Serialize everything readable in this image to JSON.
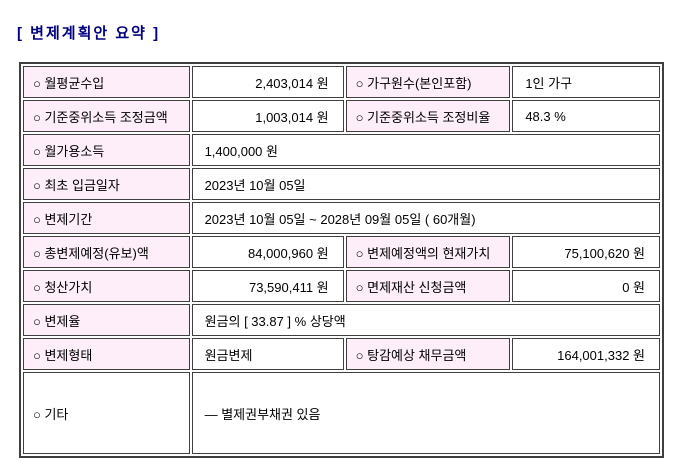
{
  "page": {
    "title": "[ 변제계획안 요약 ]"
  },
  "colors": {
    "title": "#000080",
    "label_bg": "#fdeef9",
    "border": "#3f3f3f",
    "text": "#000000",
    "background": "#ffffff"
  },
  "table": {
    "rows": [
      {
        "cells": [
          {
            "text": "○ 월평균수입"
          },
          {
            "text": "2,403,014 원"
          },
          {
            "text": "○ 가구원수(본인포함)"
          },
          {
            "text": "1인 가구"
          }
        ]
      },
      {
        "cells": [
          {
            "text": "○ 기준중위소득 조정금액"
          },
          {
            "text": "1,003,014 원"
          },
          {
            "text": "○ 기준중위소득 조정비율"
          },
          {
            "text": "48.3 %"
          }
        ]
      },
      {
        "cells": [
          {
            "text": "○ 월가용소득"
          },
          {
            "text": "1,400,000 원"
          }
        ]
      },
      {
        "cells": [
          {
            "text": "○ 최초 입금일자"
          },
          {
            "text": "2023년 10월 05일"
          }
        ]
      },
      {
        "cells": [
          {
            "text": "○ 변제기간"
          },
          {
            "text": "2023년 10월 05일 ~ 2028년 09월 05일 ( 60개월)"
          }
        ]
      },
      {
        "cells": [
          {
            "text": "○ 총변제예정(유보)액"
          },
          {
            "text": "84,000,960 원"
          },
          {
            "text": "○ 변제예정액의 현재가치"
          },
          {
            "text": "75,100,620 원"
          }
        ]
      },
      {
        "cells": [
          {
            "text": "○ 청산가치"
          },
          {
            "text": "73,590,411 원"
          },
          {
            "text": "○ 면제재산 신청금액"
          },
          {
            "text": "0 원"
          }
        ]
      },
      {
        "cells": [
          {
            "text": "○ 변제율"
          },
          {
            "text": "원금의 [ 33.87 ] % 상당액"
          }
        ]
      },
      {
        "cells": [
          {
            "text": "○ 변제형태"
          },
          {
            "text": "원금변제"
          },
          {
            "text": "○ 탕감예상 채무금액"
          },
          {
            "text": "164,001,332 원"
          }
        ]
      },
      {
        "cells": [
          {
            "text": "○ 기타"
          },
          {
            "text": "― 별제권부채권 있음"
          }
        ]
      }
    ]
  }
}
